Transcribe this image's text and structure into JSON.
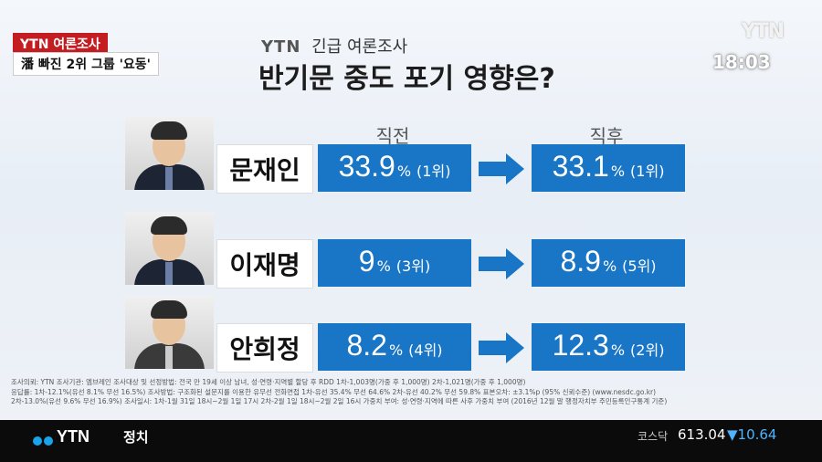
{
  "broadcast": {
    "tag": "YTN 여론조사",
    "headline": "潘 빠진 2위 그룹 '요동'",
    "clock": "18:03",
    "watermark": "YTN"
  },
  "graphic": {
    "brand": "YTN",
    "subtitle": "긴급 여론조사",
    "title": "반기문 중도 포기 영향은?",
    "col_before": "직전",
    "col_after": "직후",
    "rows": [
      {
        "name": "문재인",
        "before_value": "33.9",
        "before_rank": "(1위)",
        "after_value": "33.1",
        "after_rank": "(1위)"
      },
      {
        "name": "이재명",
        "before_value": "9",
        "before_rank": "(3위)",
        "after_value": "8.9",
        "after_rank": "(5위)"
      },
      {
        "name": "안희정",
        "before_value": "8.2",
        "before_rank": "(4위)",
        "after_value": "12.3",
        "after_rank": "(2위)"
      }
    ],
    "percent": "%",
    "accent_color": "#1975c6"
  },
  "fine_print": [
    "조사의뢰: YTN    조사기관: 엠브레인        조사대상 및 선정방법: 전국 만 19세 이상 남녀, 성·연령·지역별 할당 후 RDD  1차-1,003명(가중 후 1,000명)  2차-1,021명(가중 후 1,000명)",
    "응답률: 1차-12.1%(유선 8.1% 무선 16.5%)        조사방법: 구조화된 설문지를 이용한 유무선 전화면접  1차-유선 35.4% 무선 64.6%  2차-유선 40.2% 무선 59.8%    표본오차: ±3.1%p (95% 신뢰수준)    (www.nesdc.go.kr)",
    "2차-13.0%(유선 9.6% 무선 16.9%)    조사일시: 1차-1월 31일 18시~2월 1일 17시   2차-2월 1일 18시~2월 2일 16시  가중치 부여: 성·연령·지역에 따른 사후 가중치 부여 (2016년 12월 말 행정자치부 주민등록인구통계 기준)"
  ],
  "ticker": {
    "logo": "YTN",
    "section": "정치",
    "market_label": "코스닥",
    "market_value": "613.04",
    "market_change": "▼10.64"
  }
}
